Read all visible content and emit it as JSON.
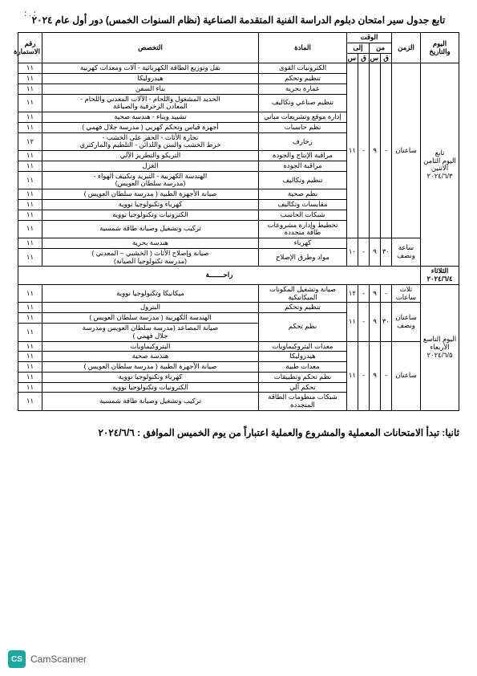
{
  "title": "تابع جدول سير امتحان دبلوم الدراسة الفنية المتقدمة الصناعية (نظام السنوات الخمس) دور أول عام ٢٠٢٤",
  "top_dots": "؛ . ؛",
  "headers": {
    "day": "اليوم والتاريخ",
    "duration": "الزمن",
    "time": "الوقت",
    "from": "من",
    "to": "إلى",
    "h": "س",
    "m": "ق",
    "subject": "المادة",
    "spec": "التخصص",
    "form": "رقم الاستمارة"
  },
  "days": {
    "mon": "تابع\nاليوم الثامن\nالاثنين\n٢٠٢٤/٦/٣",
    "tue": "الثلاثاء\n٢٠٢٤/٦/٤",
    "wed": "اليوم التاسع\nالأربعاء\n٢٠٢٤/٦/٥"
  },
  "durations": {
    "two": "ساعتان",
    "one_half": "ساعة\nونصف",
    "three": "ثلاث\nساعات",
    "two_half": "ساعتان\nونصف"
  },
  "time_blocks": {
    "mon_main": {
      "fh": "٩",
      "fq": "-",
      "th": "١١",
      "tq": "-"
    },
    "mon_short": {
      "fh": "٩",
      "fq": "٣٠",
      "th": "١٠",
      "tq": "-"
    },
    "wed_a": {
      "fh": "٩",
      "fq": "-",
      "th": "١٢",
      "tq": "-"
    },
    "wed_b": {
      "fh": "٩",
      "fq": "٣٠",
      "th": "١١",
      "tq": "-"
    },
    "wed_c": {
      "fh": "٩",
      "fq": "-",
      "th": "١١",
      "tq": "-"
    }
  },
  "mon_rows": [
    {
      "subj": "الكترونيات القوى",
      "spec": "نقل وتوزيع الطاقة الكهربائية - آلات ومعدات كهربية",
      "f": "١١"
    },
    {
      "subj": "تنظيم وتحكم",
      "spec": "هيدروليكا",
      "f": "١١"
    },
    {
      "subj": "عمارة بحرية",
      "spec": "بناء السفن",
      "f": "١١"
    },
    {
      "subj": "تنظيم صناعي وتكاليف",
      "spec": "الحديد المشغول واللحام - الآلات المعدني واللحام -\nالمعادن الزخرفية والصياغة",
      "f": "١١"
    },
    {
      "subj": "إدارة موقع وتشريعات مباني",
      "spec": "تشييد وبناء - هندسة صحية",
      "f": "١١"
    },
    {
      "subj": "نظم حاسبات",
      "spec": "أجهزة قياس وتحكم كهربي ( مدرسة جلال فهمي )",
      "f": "١١"
    },
    {
      "subj": "زخارف",
      "spec": "تجارة الأثاث - الحفر على الخشب -\nخرط الخشب والسن واللدائن - التلطيم والماركتري",
      "f": "١٢"
    },
    {
      "subj": "مراقبة الإنتاج والجودة",
      "spec": "التريكو والتطريز الآلي",
      "f": "١١"
    },
    {
      "subj": "مراقبة الجودة",
      "spec": "الغزل",
      "f": "١١"
    },
    {
      "subj": "تنظيم وتكاليف",
      "spec": "الهندسة الكهربية - التبريد وتكييف الهواء -\n(مدرسة سلطان العويس)",
      "f": "١١"
    },
    {
      "subj": "نظم صحية",
      "spec": "صيانة الأجهزة الطبية ( مدرسة سلطان العويس )",
      "f": "١١"
    },
    {
      "subj": "مقايسات وتكاليف",
      "spec": "كهرباء وتكنولوجيا نووية",
      "f": "١١"
    },
    {
      "subj": "شبكات الحاسب",
      "spec": "الكترونيات وتكنولوجيا نووية",
      "f": "١١"
    },
    {
      "subj": "تخطيط وإدارة مشروعات\nطاقة متجددة",
      "spec": "تركيب وتشغيل وصيانة طاقة شمسية",
      "f": "١١"
    }
  ],
  "mon_short_rows": [
    {
      "subj": "كهرباء",
      "spec": "هندسة بحرية",
      "f": "١١"
    },
    {
      "subj": "مواد وطرق الإصلاح",
      "spec": "صيانة وإصلاح الأثاث ( الخشبي – المعدني )\n(مدرسة تكنولوجيا الصيانة)",
      "f": "١١"
    }
  ],
  "rest_label": "راحـــــــة",
  "wed_rows_a": [
    {
      "subj": "صيانة وتشغيل المكونات\nالميكانيكية",
      "spec": "ميكانيكا وتكنولوجيا نووية",
      "f": "١١"
    }
  ],
  "wed_rows_b": [
    {
      "subj": "تنظيم وتحكم",
      "spec": "البترول",
      "f": "١١"
    },
    {
      "subj_rowspan": 2,
      "subj": "نظم تحكم",
      "spec": "الهندسة الكهربية ( مدرسة سلطان العويس )",
      "f": "١١"
    },
    {
      "spec": "صيانة المصاعد (مدرسة سلطان العويس ومدرسة\nجلال فهمي )",
      "f": "١١"
    }
  ],
  "wed_rows_c": [
    {
      "subj": "معدات البتروكيماويات",
      "spec": "البتروكيماويات",
      "f": "١١"
    },
    {
      "subj": "هيدروليكا",
      "spec": "هندسة صحية",
      "f": "١١"
    },
    {
      "subj": "معدات طبية",
      "spec": "صيانة الأجهزة الطبية ( مدرسة سلطان العويس )",
      "f": "١١"
    },
    {
      "subj": "نظم تحكم وتطبيقات",
      "spec": "كهرباء وتكنولوجيا نووية",
      "f": "١١"
    },
    {
      "subj": "تحكم آلي",
      "spec": "الكترونيات وتكنولوجيا نووية",
      "f": "١١"
    },
    {
      "subj": "شبكات منظومات الطاقة\nالمتجددة",
      "spec": "تركيب وتشغيل وصيانة طاقة شمسية",
      "f": "١١"
    }
  ],
  "footer": "ثانيا: تبدأ الامتحانات المعملية والمشروع والعملية اعتباراً من يوم الخميس الموافق : ٢٠٢٤/٦/٦",
  "camscanner": {
    "badge": "CS",
    "text": "CamScanner"
  }
}
